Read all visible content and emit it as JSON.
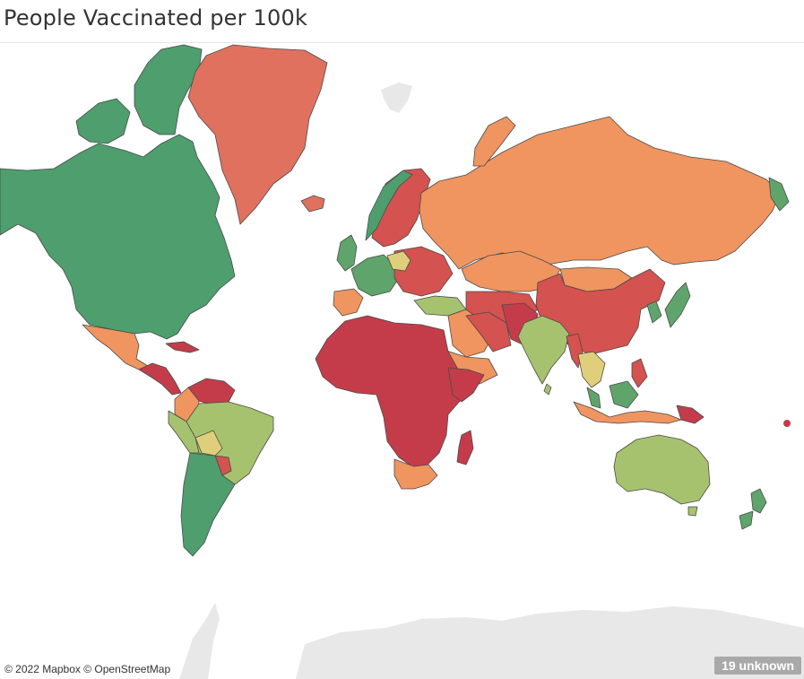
{
  "title": "People Vaccinated per 100k",
  "attribution": "© 2022 Mapbox © OpenStreetMap",
  "unknown_badge": "19 unknown",
  "colors": {
    "dark_green": "#4e9e6e",
    "green": "#5fa56b",
    "light_green": "#a6c26f",
    "yellow": "#e0cf7a",
    "orange": "#f0955f",
    "red_orange": "#e0715f",
    "red": "#d4524f",
    "dark_red": "#c43c4a",
    "no_data": "#e8e8e8"
  },
  "regions": [
    {
      "name": "North America",
      "color": "dark_green"
    },
    {
      "name": "Greenland",
      "color": "red_orange"
    },
    {
      "name": "Mexico",
      "color": "orange"
    },
    {
      "name": "Central America",
      "color": "dark_red"
    },
    {
      "name": "Venezuela",
      "color": "dark_red"
    },
    {
      "name": "Colombia",
      "color": "orange"
    },
    {
      "name": "Brazil",
      "color": "light_green"
    },
    {
      "name": "Bolivia",
      "color": "yellow"
    },
    {
      "name": "Paraguay",
      "color": "red"
    },
    {
      "name": "Southern Cone",
      "color": "dark_green"
    },
    {
      "name": "Western Europe",
      "color": "green"
    },
    {
      "name": "Scandinavia",
      "color": "red"
    },
    {
      "name": "Russia",
      "color": "orange"
    },
    {
      "name": "Kazakhstan",
      "color": "orange"
    },
    {
      "name": "Central Asia",
      "color": "red"
    },
    {
      "name": "China",
      "color": "red"
    },
    {
      "name": "Mongolia",
      "color": "orange"
    },
    {
      "name": "Japan",
      "color": "green"
    },
    {
      "name": "India",
      "color": "light_green"
    },
    {
      "name": "Middle East",
      "color": "orange"
    },
    {
      "name": "Arabia",
      "color": "red"
    },
    {
      "name": "Africa",
      "color": "dark_red"
    },
    {
      "name": "Southern Africa",
      "color": "orange"
    },
    {
      "name": "Madagascar",
      "color": "dark_red"
    },
    {
      "name": "Southeast Asia",
      "color": "yellow"
    },
    {
      "name": "Indonesia",
      "color": "orange"
    },
    {
      "name": "Papua New Guinea",
      "color": "dark_red"
    },
    {
      "name": "Australia",
      "color": "light_green"
    },
    {
      "name": "New Zealand",
      "color": "green"
    },
    {
      "name": "Antarctica",
      "color": "no_data"
    }
  ]
}
